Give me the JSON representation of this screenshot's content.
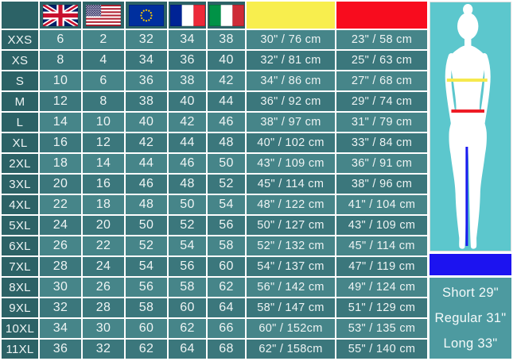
{
  "chart_data": {
    "type": "table",
    "columns": [
      "size",
      "uk",
      "us",
      "eu",
      "france",
      "italy",
      "chest",
      "waist"
    ],
    "header_icons": [
      "uk-flag",
      "us-flag",
      "eu-flag",
      "france-flag",
      "italy-flag",
      "chest-yellow-swatch",
      "waist-red-swatch"
    ],
    "rows": [
      [
        "XXS",
        "6",
        "2",
        "32",
        "34",
        "38",
        "30\" / 76 cm",
        "23\" / 58 cm"
      ],
      [
        "XS",
        "8",
        "4",
        "34",
        "36",
        "40",
        "32\" / 81 cm",
        "25\" / 63 cm"
      ],
      [
        "S",
        "10",
        "6",
        "36",
        "38",
        "42",
        "34\" / 86 cm",
        "27\" / 68 cm"
      ],
      [
        "M",
        "12",
        "8",
        "38",
        "40",
        "44",
        "36\" / 92 cm",
        "29\" / 74 cm"
      ],
      [
        "L",
        "14",
        "10",
        "40",
        "42",
        "46",
        "38\" / 97 cm",
        "31\" / 79 cm"
      ],
      [
        "XL",
        "16",
        "12",
        "42",
        "44",
        "48",
        "40\" / 102 cm",
        "33\" / 84 cm"
      ],
      [
        "2XL",
        "18",
        "14",
        "44",
        "46",
        "50",
        "43\" / 109 cm",
        "36\" / 91 cm"
      ],
      [
        "3XL",
        "20",
        "16",
        "46",
        "48",
        "52",
        "45\" / 114 cm",
        "38\" / 96 cm"
      ],
      [
        "4XL",
        "22",
        "18",
        "48",
        "50",
        "54",
        "48\" / 122 cm",
        "41\" / 104 cm"
      ],
      [
        "5XL",
        "24",
        "20",
        "50",
        "52",
        "56",
        "50\" / 127 cm",
        "43\" / 109 cm"
      ],
      [
        "6XL",
        "26",
        "22",
        "52",
        "54",
        "58",
        "52\" / 132 cm",
        "45\" / 114 cm"
      ],
      [
        "7XL",
        "28",
        "24",
        "54",
        "56",
        "60",
        "54\" / 137 cm",
        "47\" / 119 cm"
      ],
      [
        "8XL",
        "30",
        "26",
        "56",
        "58",
        "62",
        "56\" / 142 cm",
        "49\" / 124 cm"
      ],
      [
        "9XL",
        "32",
        "28",
        "58",
        "60",
        "64",
        "58\" / 147 cm",
        "51\" / 129 cm"
      ],
      [
        "10XL",
        "34",
        "30",
        "60",
        "62",
        "66",
        "60\" / 152cm",
        "53\" / 135 cm"
      ],
      [
        "11XL",
        "36",
        "32",
        "62",
        "64",
        "68",
        "62\" / 158cm",
        "55\" / 140 cm"
      ]
    ]
  },
  "leg_length_panel": {
    "options": [
      "Short 29\"",
      "Regular 31\"",
      "Long 33\""
    ]
  },
  "colors": {
    "header_bg": "#2c6266",
    "row_light": "#468589",
    "row_dark": "#3b777c",
    "chest_header": "#f8ee4e",
    "waist_header": "#f80c1e",
    "figure_bg": "#5cc7cd",
    "chest_line": "#f6e94d",
    "waist_line": "#ee1c25",
    "inseam_line": "#1b1bf0",
    "leg_bar": "#1c13f0",
    "leg_panel_bg": "#4d9aa0",
    "text": "#eef4f4"
  }
}
